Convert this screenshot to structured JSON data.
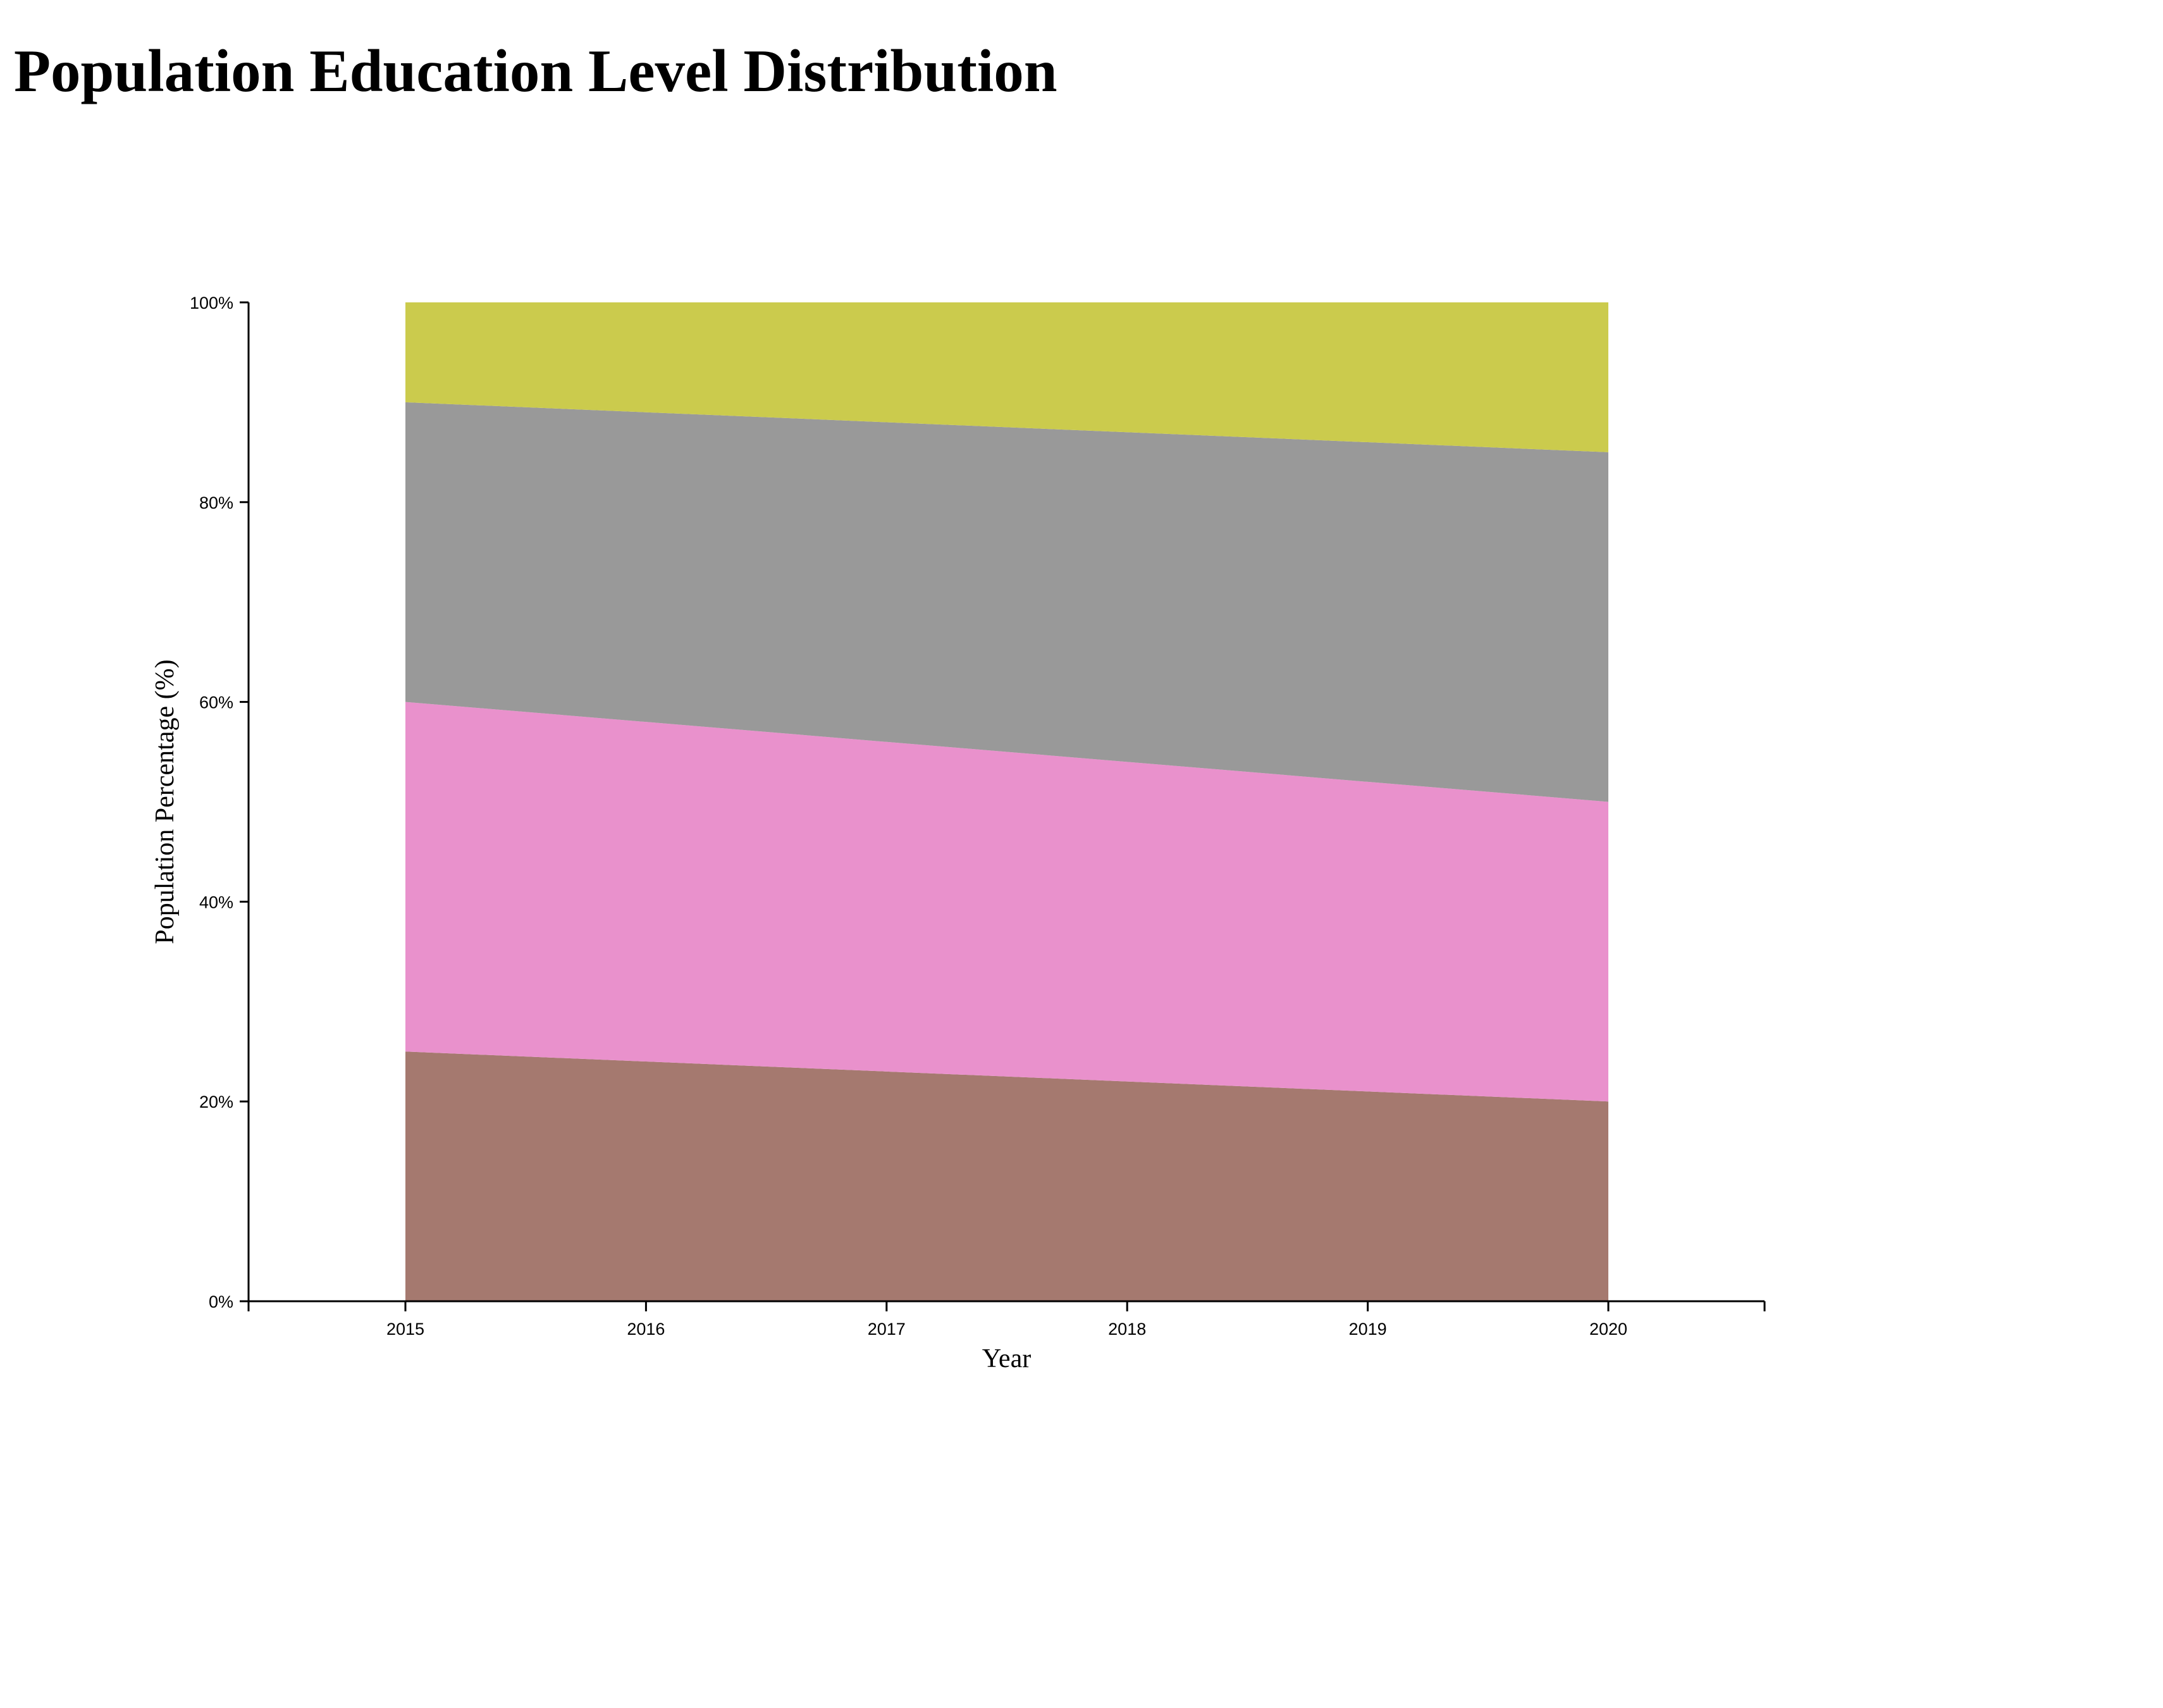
{
  "page": {
    "title": "Population Education Level Distribution"
  },
  "chart_data": {
    "type": "area",
    "stacked": true,
    "title": "Population Education Level Distribution",
    "xlabel": "Year",
    "ylabel": "Population Percentage (%)",
    "x": [
      "2015",
      "2016",
      "2017",
      "2018",
      "2019",
      "2020"
    ],
    "ylim": [
      0,
      100
    ],
    "yticks": [
      "0%",
      "20%",
      "40%",
      "60%",
      "80%",
      "100%"
    ],
    "grid": false,
    "legend": "none",
    "series": [
      {
        "color": "#a5796f",
        "values": [
          25,
          24,
          23,
          22,
          21,
          20
        ]
      },
      {
        "color": "#e991cc",
        "values": [
          35,
          34,
          33,
          32,
          31,
          30
        ]
      },
      {
        "color": "#999999",
        "values": [
          30,
          31,
          32,
          33,
          34,
          35
        ]
      },
      {
        "color": "#cbcb4d",
        "values": [
          10,
          11,
          12,
          13,
          14,
          15
        ]
      }
    ]
  }
}
